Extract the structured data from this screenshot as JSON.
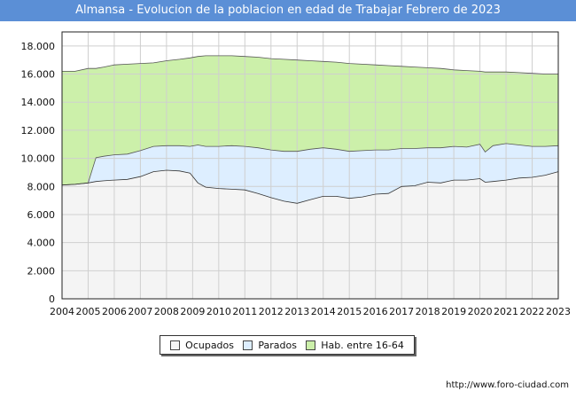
{
  "title": "Almansa - Evolucion de la poblacion en edad de Trabajar Febrero de 2023",
  "source_url": "http://www.foro-ciudad.com",
  "chart_data": {
    "type": "area",
    "title": "Almansa - Evolucion de la poblacion en edad de Trabajar Febrero de 2023",
    "xlim": [
      2004,
      2023
    ],
    "ylim": [
      0,
      19000
    ],
    "x_ticks": [
      "2004",
      "2005",
      "2006",
      "2007",
      "2008",
      "2009",
      "2010",
      "2011",
      "2012",
      "2013",
      "2014",
      "2015",
      "2016",
      "2017",
      "2018",
      "2019",
      "2020",
      "2021",
      "2022",
      "2023"
    ],
    "y_ticks": [
      "0",
      "2.000",
      "4.000",
      "6.000",
      "8.000",
      "10.000",
      "12.000",
      "14.000",
      "16.000",
      "18.000"
    ],
    "y_tick_values": [
      0,
      2000,
      4000,
      6000,
      8000,
      10000,
      12000,
      14000,
      16000,
      18000
    ],
    "grid": true,
    "legend_position": "bottom",
    "x": [
      2004.0,
      2004.5,
      2005.0,
      2005.3,
      2005.6,
      2006.0,
      2006.5,
      2007.0,
      2007.5,
      2008.0,
      2008.5,
      2008.9,
      2009.2,
      2009.5,
      2010.0,
      2010.5,
      2011.0,
      2011.5,
      2012.0,
      2012.5,
      2013.0,
      2013.5,
      2014.0,
      2014.5,
      2015.0,
      2015.5,
      2016.0,
      2016.5,
      2017.0,
      2017.5,
      2018.0,
      2018.5,
      2019.0,
      2019.5,
      2020.0,
      2020.2,
      2020.5,
      2021.0,
      2021.5,
      2022.0,
      2022.5,
      2023.0
    ],
    "series": [
      {
        "name": "Ocupados",
        "color": "#f4f4f4",
        "line": "#333333",
        "values": [
          8100,
          8150,
          8250,
          8350,
          8400,
          8450,
          8500,
          8700,
          9050,
          9150,
          9100,
          8950,
          8250,
          7950,
          7850,
          7800,
          7750,
          7500,
          7200,
          6950,
          6800,
          7050,
          7300,
          7300,
          7150,
          7250,
          7450,
          7500,
          8000,
          8050,
          8300,
          8250,
          8450,
          8450,
          8550,
          8300,
          8350,
          8450,
          8600,
          8650,
          8800,
          9050
        ]
      },
      {
        "name": "Parados",
        "color": "#ddeeff",
        "line": "#333333",
        "values": [
          0,
          0,
          0,
          1700,
          1750,
          1800,
          1800,
          1850,
          1800,
          1750,
          1800,
          1900,
          2700,
          2900,
          3000,
          3100,
          3100,
          3250,
          3400,
          3550,
          3700,
          3600,
          3450,
          3350,
          3350,
          3300,
          3150,
          3100,
          2700,
          2650,
          2450,
          2500,
          2400,
          2350,
          2450,
          2150,
          2550,
          2600,
          2350,
          2200,
          2050,
          1850
        ]
      },
      {
        "name": "Hab. entre 16-64",
        "color": "#ccf0aa",
        "line": "#333333",
        "total": [
          16200,
          16200,
          16400,
          16400,
          16500,
          16650,
          16700,
          16750,
          16800,
          16950,
          17050,
          17150,
          17250,
          17300,
          17300,
          17300,
          17250,
          17200,
          17100,
          17050,
          17000,
          16950,
          16900,
          16850,
          16750,
          16700,
          16650,
          16600,
          16550,
          16500,
          16450,
          16400,
          16300,
          16250,
          16200,
          16150,
          16150,
          16150,
          16100,
          16050,
          16000,
          16000
        ]
      }
    ]
  },
  "legend": {
    "items": [
      {
        "label": "Ocupados",
        "color": "#f4f4f4"
      },
      {
        "label": "Parados",
        "color": "#ddeeff"
      },
      {
        "label": "Hab. entre 16-64",
        "color": "#ccf0aa"
      }
    ]
  }
}
